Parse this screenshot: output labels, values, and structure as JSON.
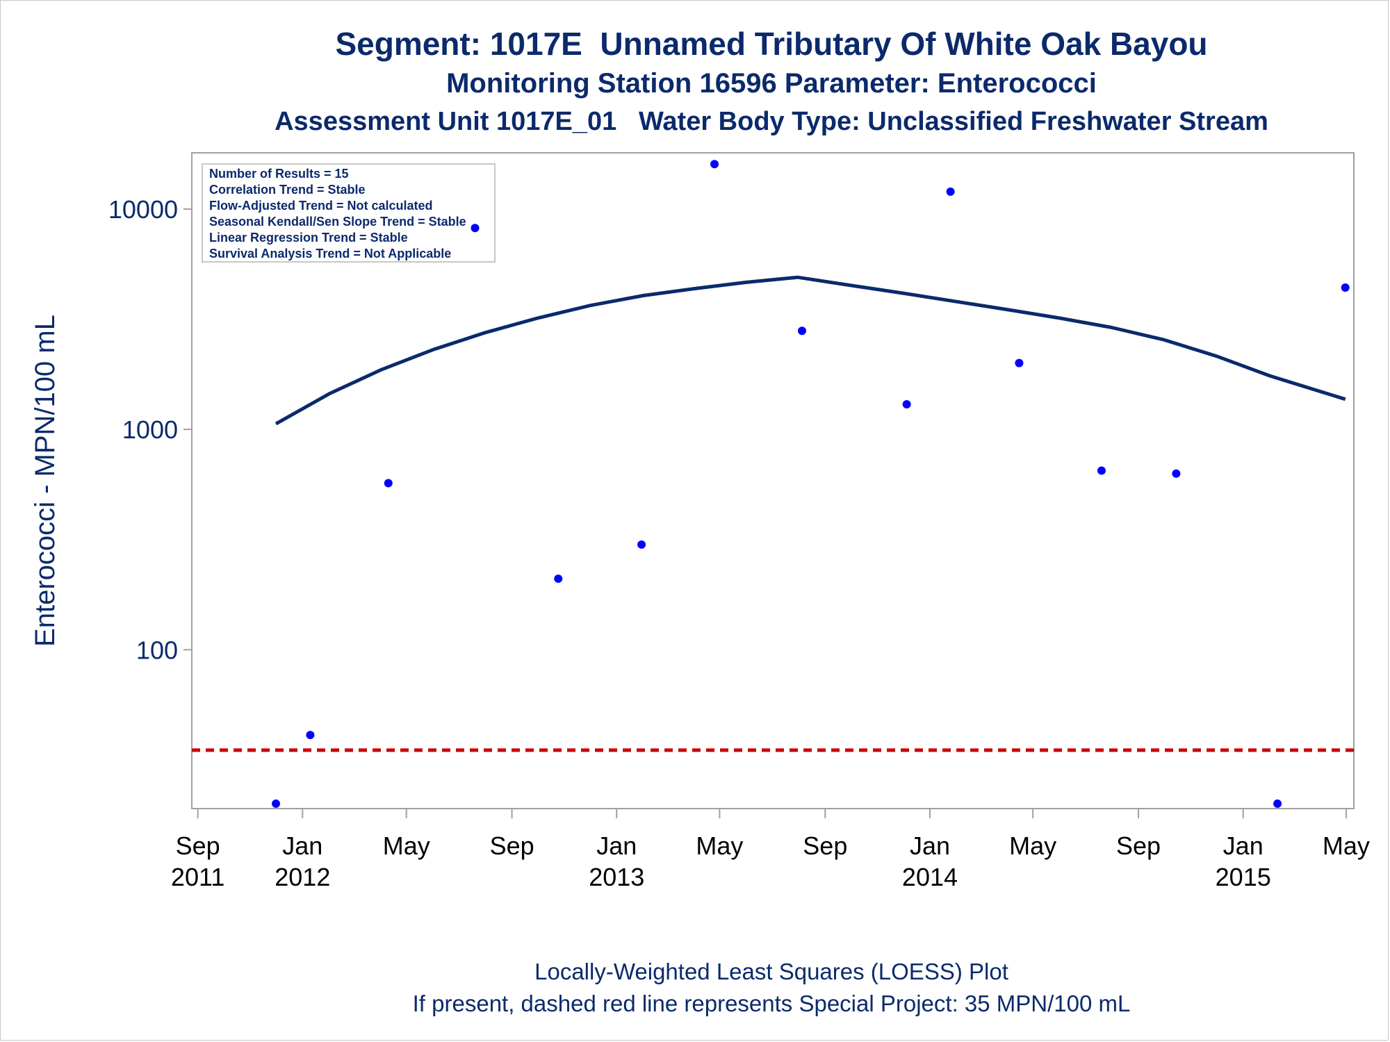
{
  "titles": {
    "line1": "Segment: 1017E  Unnamed Tributary Of White Oak Bayou",
    "line2": "Monitoring Station 16596 Parameter: Enterococci",
    "line3": "Assessment Unit 1017E_01   Water Body Type: Unclassified Freshwater Stream"
  },
  "footer": {
    "line1": "Locally-Weighted Least Squares (LOESS) Plot",
    "line2": "If present, dashed red line represents Special Project: 35 MPN/100 mL"
  },
  "colors": {
    "text": "#0b2a6b",
    "points": "#0000ff",
    "loess": "#0b2a6b",
    "reference": "#cc0000",
    "frame": "#a0a0a0"
  },
  "chart_data": {
    "type": "scatter",
    "ylabel": "Enterococci - MPN/100 mL",
    "xlabel": "",
    "yscale": "log",
    "ylim": [
      19,
      18000
    ],
    "xlim": [
      "2011-08-25",
      "2015-05-10"
    ],
    "grid": false,
    "legend_box": [
      "Number of Results = 15",
      "Correlation Trend = Stable",
      "Flow-Adjusted Trend = Not calculated",
      "Seasonal Kendall/Sen Slope Trend = Stable",
      "Linear Regression Trend = Stable",
      "Survival Analysis Trend = Not Applicable"
    ],
    "legend_placement": "top-left",
    "y_ticks": [
      {
        "value": 100,
        "label": "100"
      },
      {
        "value": 1000,
        "label": "1000"
      },
      {
        "value": 10000,
        "label": "10000"
      }
    ],
    "x_ticks": [
      {
        "date": "2011-09-01",
        "label": [
          "Sep",
          "2011"
        ]
      },
      {
        "date": "2012-01-01",
        "label": [
          "Jan",
          "2012"
        ]
      },
      {
        "date": "2012-05-01",
        "label": [
          "May",
          ""
        ]
      },
      {
        "date": "2012-09-01",
        "label": [
          "Sep",
          ""
        ]
      },
      {
        "date": "2013-01-01",
        "label": [
          "Jan",
          "2013"
        ]
      },
      {
        "date": "2013-05-01",
        "label": [
          "May",
          ""
        ]
      },
      {
        "date": "2013-09-01",
        "label": [
          "Sep",
          ""
        ]
      },
      {
        "date": "2014-01-01",
        "label": [
          "Jan",
          "2014"
        ]
      },
      {
        "date": "2014-05-01",
        "label": [
          "May",
          ""
        ]
      },
      {
        "date": "2014-09-01",
        "label": [
          "Sep",
          ""
        ]
      },
      {
        "date": "2015-01-01",
        "label": [
          "Jan",
          "2015"
        ]
      },
      {
        "date": "2015-05-01",
        "label": [
          "May",
          ""
        ]
      }
    ],
    "series": [
      {
        "type": "scatter",
        "points": [
          {
            "x": "2011-12-01",
            "y": 20
          },
          {
            "x": "2012-01-10",
            "y": 41
          },
          {
            "x": "2012-04-10",
            "y": 570
          },
          {
            "x": "2012-07-20",
            "y": 8200
          },
          {
            "x": "2012-10-25",
            "y": 210
          },
          {
            "x": "2013-01-30",
            "y": 300
          },
          {
            "x": "2013-04-25",
            "y": 16000
          },
          {
            "x": "2013-08-05",
            "y": 2800
          },
          {
            "x": "2013-12-05",
            "y": 1300
          },
          {
            "x": "2014-01-25",
            "y": 12000
          },
          {
            "x": "2014-04-15",
            "y": 2000
          },
          {
            "x": "2014-07-20",
            "y": 650
          },
          {
            "x": "2014-10-15",
            "y": 630
          },
          {
            "x": "2015-02-10",
            "y": 20
          },
          {
            "x": "2015-04-30",
            "y": 4400
          }
        ]
      },
      {
        "type": "line",
        "points": [
          {
            "x": "2011-12-01",
            "y": 1060
          },
          {
            "x": "2012-02-01",
            "y": 1450
          },
          {
            "x": "2012-04-01",
            "y": 1860
          },
          {
            "x": "2012-06-01",
            "y": 2300
          },
          {
            "x": "2012-08-01",
            "y": 2750
          },
          {
            "x": "2012-10-01",
            "y": 3200
          },
          {
            "x": "2012-12-01",
            "y": 3650
          },
          {
            "x": "2013-02-01",
            "y": 4050
          },
          {
            "x": "2013-04-01",
            "y": 4350
          },
          {
            "x": "2013-06-01",
            "y": 4650
          },
          {
            "x": "2013-07-31",
            "y": 4900
          },
          {
            "x": "2013-10-01",
            "y": 4500
          },
          {
            "x": "2013-12-01",
            "y": 4150
          },
          {
            "x": "2014-02-01",
            "y": 3800
          },
          {
            "x": "2014-04-01",
            "y": 3500
          },
          {
            "x": "2014-06-01",
            "y": 3200
          },
          {
            "x": "2014-08-01",
            "y": 2900
          },
          {
            "x": "2014-10-01",
            "y": 2550
          },
          {
            "x": "2014-12-01",
            "y": 2150
          },
          {
            "x": "2015-02-01",
            "y": 1750
          },
          {
            "x": "2015-04-30",
            "y": 1370
          }
        ]
      }
    ],
    "reference_line": {
      "y": 35,
      "style": "dashed"
    }
  }
}
